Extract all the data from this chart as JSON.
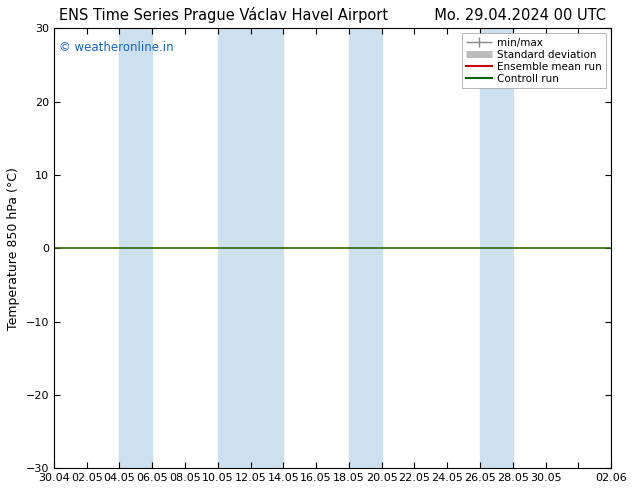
{
  "title_left": "ENS Time Series Prague Václav Havel Airport",
  "title_right": "Mo. 29.04.2024 00 UTC",
  "ylabel": "Temperature 850 hPa (°C)",
  "ylim": [
    -30,
    30
  ],
  "yticks": [
    -30,
    -20,
    -10,
    0,
    10,
    20,
    30
  ],
  "watermark": "© weatheronline.in",
  "watermark_color": "#1565C0",
  "background_color": "#ffffff",
  "band_color": "#cce0f0",
  "zero_line_color": "#2d6a00",
  "xtick_labels": [
    "30.04",
    "02.05",
    "04.05",
    "06.05",
    "08.05",
    "10.05",
    "12.05",
    "14.05",
    "16.05",
    "18.05",
    "20.05",
    "22.05",
    "24.05",
    "26.05",
    "28.05",
    "30.05",
    "",
    "02.06"
  ],
  "legend_labels": [
    "min/max",
    "Standard deviation",
    "Ensemble mean run",
    "Controll run"
  ],
  "legend_line_color": "#888888",
  "legend_std_color": "#bbbbbb",
  "legend_mean_color": "#cc0000",
  "legend_ctrl_color": "#006400",
  "title_fontsize": 10.5,
  "tick_fontsize": 8,
  "ylabel_fontsize": 9,
  "n_xpoints": 18,
  "band_indices": [
    2,
    3,
    5,
    6,
    9,
    10,
    13,
    14,
    17
  ]
}
